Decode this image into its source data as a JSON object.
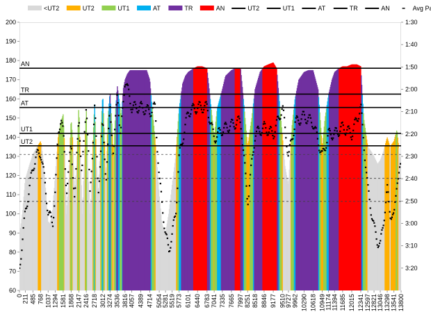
{
  "chart_data": {
    "type": "area",
    "title": "",
    "xlabel": "",
    "ylabel": "",
    "ylim": [
      60,
      200
    ],
    "y_ticks": [
      "60",
      "70",
      "80",
      "90",
      "100",
      "110",
      "120",
      "130",
      "140",
      "150",
      "160",
      "170",
      "180",
      "190",
      "200"
    ],
    "x_ticks": [
      "0",
      "211",
      "485",
      "768",
      "1037",
      "1294",
      "1581",
      "1868",
      "2147",
      "2416",
      "2718",
      "3012",
      "3274",
      "3536",
      "3816",
      "4057",
      "4389",
      "4714",
      "5054",
      "5281",
      "5519",
      "5773",
      "6101",
      "6440",
      "6783",
      "7041",
      "7335",
      "7665",
      "7997",
      "8251",
      "8518",
      "8846",
      "9177",
      "9510",
      "9727",
      "9962",
      "10290",
      "10618",
      "10949",
      "11174",
      "11394",
      "11685",
      "12015",
      "12341",
      "12597",
      "12821",
      "13046",
      "13298",
      "13541",
      "13800"
    ],
    "y2_ticks": [
      "1:30",
      "1:40",
      "1:50",
      "2:00",
      "2:10",
      "2:20",
      "2:30",
      "2:40",
      "2:50",
      "3:00",
      "3:10",
      "3:20"
    ],
    "legend": {
      "position": "top",
      "entries": [
        {
          "label": "<UT2",
          "color": "#d9d9d9",
          "kind": "area"
        },
        {
          "label": "UT2",
          "color": "#ffb000",
          "kind": "area"
        },
        {
          "label": "UT1",
          "color": "#92d050",
          "kind": "area"
        },
        {
          "label": "AT",
          "color": "#00b0f0",
          "kind": "area"
        },
        {
          "label": "TR",
          "color": "#7030a0",
          "kind": "area"
        },
        {
          "label": "AN",
          "color": "#ff0000",
          "kind": "area"
        },
        {
          "label": "UT2",
          "color": "#000000",
          "kind": "line"
        },
        {
          "label": "UT1",
          "color": "#000000",
          "kind": "line"
        },
        {
          "label": "AT",
          "color": "#000000",
          "kind": "line"
        },
        {
          "label": "TR",
          "color": "#000000",
          "kind": "line"
        },
        {
          "label": "AN",
          "color": "#000000",
          "kind": "line"
        },
        {
          "label": "Avg Pace",
          "color": "#000000",
          "kind": "dash"
        }
      ]
    },
    "thresholds": [
      {
        "name": "AN",
        "value": 176
      },
      {
        "name": "TR",
        "value": 162.5
      },
      {
        "name": "AT",
        "value": 155.5
      },
      {
        "name": "UT1",
        "value": 142
      },
      {
        "name": "UT2",
        "value": 135.5
      }
    ],
    "zone_boundaries": {
      "UT2": 135.5,
      "UT1": 142,
      "AT": 155.5,
      "TR": 162.5,
      "AN": 176
    },
    "dashed_grid": [
      131,
      118.5,
      106.5
    ],
    "heart_rate": [
      [
        0,
        88
      ],
      [
        120,
        102
      ],
      [
        211,
        118
      ],
      [
        350,
        125
      ],
      [
        485,
        131
      ],
      [
        600,
        134
      ],
      [
        768,
        138
      ],
      [
        850,
        130
      ],
      [
        1037,
        96
      ],
      [
        1100,
        95
      ],
      [
        1200,
        102
      ],
      [
        1294,
        120
      ],
      [
        1400,
        140
      ],
      [
        1500,
        148
      ],
      [
        1581,
        152
      ],
      [
        1650,
        130
      ],
      [
        1700,
        100
      ],
      [
        1780,
        118
      ],
      [
        1868,
        150
      ],
      [
        1920,
        140
      ],
      [
        2000,
        110
      ],
      [
        2080,
        130
      ],
      [
        2147,
        157
      ],
      [
        2200,
        130
      ],
      [
        2280,
        100
      ],
      [
        2350,
        130
      ],
      [
        2416,
        156
      ],
      [
        2470,
        125
      ],
      [
        2560,
        100
      ],
      [
        2650,
        135
      ],
      [
        2718,
        158
      ],
      [
        2780,
        130
      ],
      [
        2850,
        110
      ],
      [
        2950,
        145
      ],
      [
        3012,
        163
      ],
      [
        3060,
        145
      ],
      [
        3130,
        120
      ],
      [
        3200,
        150
      ],
      [
        3274,
        164
      ],
      [
        3330,
        150
      ],
      [
        3400,
        130
      ],
      [
        3480,
        155
      ],
      [
        3536,
        167
      ],
      [
        3600,
        160
      ],
      [
        3680,
        150
      ],
      [
        3750,
        165
      ],
      [
        3816,
        170
      ],
      [
        3900,
        173
      ],
      [
        4000,
        175
      ],
      [
        4057,
        175
      ],
      [
        4200,
        175
      ],
      [
        4389,
        175
      ],
      [
        4500,
        175
      ],
      [
        4600,
        175
      ],
      [
        4714,
        170
      ],
      [
        4800,
        155
      ],
      [
        4900,
        140
      ],
      [
        5054,
        110
      ],
      [
        5150,
        95
      ],
      [
        5281,
        90
      ],
      [
        5400,
        100
      ],
      [
        5519,
        115
      ],
      [
        5650,
        130
      ],
      [
        5773,
        155
      ],
      [
        5900,
        168
      ],
      [
        6000,
        172
      ],
      [
        6101,
        174
      ],
      [
        6300,
        176
      ],
      [
        6440,
        177
      ],
      [
        6600,
        177
      ],
      [
        6783,
        176
      ],
      [
        6900,
        160
      ],
      [
        7041,
        140
      ],
      [
        7150,
        155
      ],
      [
        7335,
        165
      ],
      [
        7450,
        172
      ],
      [
        7665,
        175
      ],
      [
        7800,
        176
      ],
      [
        7997,
        176
      ],
      [
        8100,
        160
      ],
      [
        8251,
        135
      ],
      [
        8400,
        150
      ],
      [
        8518,
        165
      ],
      [
        8700,
        174
      ],
      [
        8846,
        177
      ],
      [
        9000,
        178
      ],
      [
        9177,
        179
      ],
      [
        9300,
        176
      ],
      [
        9510,
        140
      ],
      [
        9600,
        125
      ],
      [
        9727,
        115
      ],
      [
        9850,
        145
      ],
      [
        9962,
        160
      ],
      [
        10100,
        170
      ],
      [
        10290,
        174
      ],
      [
        10450,
        175
      ],
      [
        10618,
        175
      ],
      [
        10800,
        165
      ],
      [
        10949,
        135
      ],
      [
        11050,
        150
      ],
      [
        11174,
        162
      ],
      [
        11300,
        170
      ],
      [
        11394,
        174
      ],
      [
        11550,
        176
      ],
      [
        11685,
        177
      ],
      [
        11850,
        177
      ],
      [
        12015,
        178
      ],
      [
        12200,
        178
      ],
      [
        12341,
        177
      ],
      [
        12450,
        150
      ],
      [
        12597,
        135
      ],
      [
        12700,
        133
      ],
      [
        12821,
        130
      ],
      [
        12950,
        126
      ],
      [
        13046,
        128
      ],
      [
        13150,
        132
      ],
      [
        13298,
        140
      ],
      [
        13400,
        135
      ],
      [
        13541,
        138
      ],
      [
        13650,
        144
      ],
      [
        13750,
        130
      ],
      [
        13800,
        128
      ]
    ],
    "pace_seconds": [
      [
        0,
        200
      ],
      [
        211,
        175
      ],
      [
        485,
        155
      ],
      [
        600,
        150
      ],
      [
        768,
        148
      ],
      [
        900,
        160
      ],
      [
        1037,
        175
      ],
      [
        1200,
        180
      ],
      [
        1294,
        165
      ],
      [
        1400,
        140
      ],
      [
        1500,
        132
      ],
      [
        1581,
        140
      ],
      [
        1700,
        165
      ],
      [
        1868,
        145
      ],
      [
        2000,
        170
      ],
      [
        2147,
        130
      ],
      [
        2250,
        160
      ],
      [
        2416,
        125
      ],
      [
        2550,
        168
      ],
      [
        2718,
        128
      ],
      [
        2850,
        165
      ],
      [
        3012,
        135
      ],
      [
        3130,
        160
      ],
      [
        3274,
        128
      ],
      [
        3400,
        150
      ],
      [
        3536,
        120
      ],
      [
        3650,
        142
      ],
      [
        3816,
        115
      ],
      [
        4057,
        128
      ],
      [
        4389,
        128
      ],
      [
        4714,
        130
      ],
      [
        4900,
        128
      ],
      [
        5054,
        160
      ],
      [
        5281,
        185
      ],
      [
        5400,
        192
      ],
      [
        5519,
        185
      ],
      [
        5650,
        175
      ],
      [
        5773,
        150
      ],
      [
        6101,
        130
      ],
      [
        6440,
        128
      ],
      [
        6783,
        128
      ],
      [
        7041,
        142
      ],
      [
        7335,
        138
      ],
      [
        7665,
        136
      ],
      [
        7997,
        134
      ],
      [
        8251,
        170
      ],
      [
        8518,
        140
      ],
      [
        8846,
        137
      ],
      [
        9177,
        140
      ],
      [
        9510,
        128
      ],
      [
        9727,
        150
      ],
      [
        9962,
        135
      ],
      [
        10290,
        132
      ],
      [
        10618,
        135
      ],
      [
        10949,
        150
      ],
      [
        11174,
        140
      ],
      [
        11394,
        140
      ],
      [
        11685,
        137
      ],
      [
        12015,
        140
      ],
      [
        12341,
        128
      ],
      [
        12597,
        165
      ],
      [
        12821,
        182
      ],
      [
        12950,
        188
      ],
      [
        13046,
        190
      ],
      [
        13150,
        180
      ],
      [
        13298,
        165
      ],
      [
        13400,
        175
      ],
      [
        13541,
        178
      ],
      [
        13650,
        160
      ],
      [
        13800,
        155
      ]
    ]
  }
}
